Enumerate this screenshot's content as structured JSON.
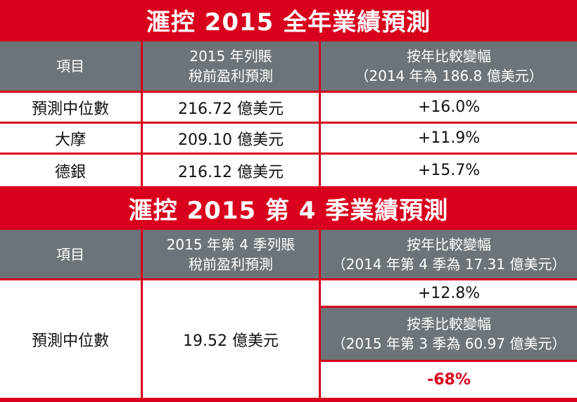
{
  "table1": {
    "title": "滙控 2015 全年業績預測",
    "headers": {
      "item": "項目",
      "col2_line1": "2015 年列賬",
      "col2_line2": "稅前盈利預測",
      "col3_line1": "按年比較變幅",
      "col3_line2": "（2014 年為 186.8 億美元）"
    },
    "rows": [
      {
        "name": "預測中位數",
        "forecast": "216.72 億美元",
        "change": "+16.0%"
      },
      {
        "name": "大摩",
        "forecast": "209.10 億美元",
        "change": "+11.9%"
      },
      {
        "name": "德銀",
        "forecast": "216.12 億美元",
        "change": "+15.7%"
      }
    ]
  },
  "table2": {
    "title": "滙控 2015 第 4 季業績預測",
    "headers": {
      "item": "項目",
      "col2_line1": "2015 年第 4 季列賬",
      "col2_line2": "稅前盈利預測",
      "col3_line1": "按年比較變幅",
      "col3_line2": "（2014 年第 4 季為 17.31 億美元）"
    },
    "row": {
      "name": "預測中位數",
      "forecast": "19.52 億美元",
      "yoy_change": "+12.8%",
      "qoq_header_line1": "按季比較變幅",
      "qoq_header_line2": "（2015 年第 3 季為 60.97 億美元）",
      "qoq_change": "-68%"
    }
  },
  "colors": {
    "title_red": "#d8001c",
    "header_gray": "#6c7479"
  }
}
